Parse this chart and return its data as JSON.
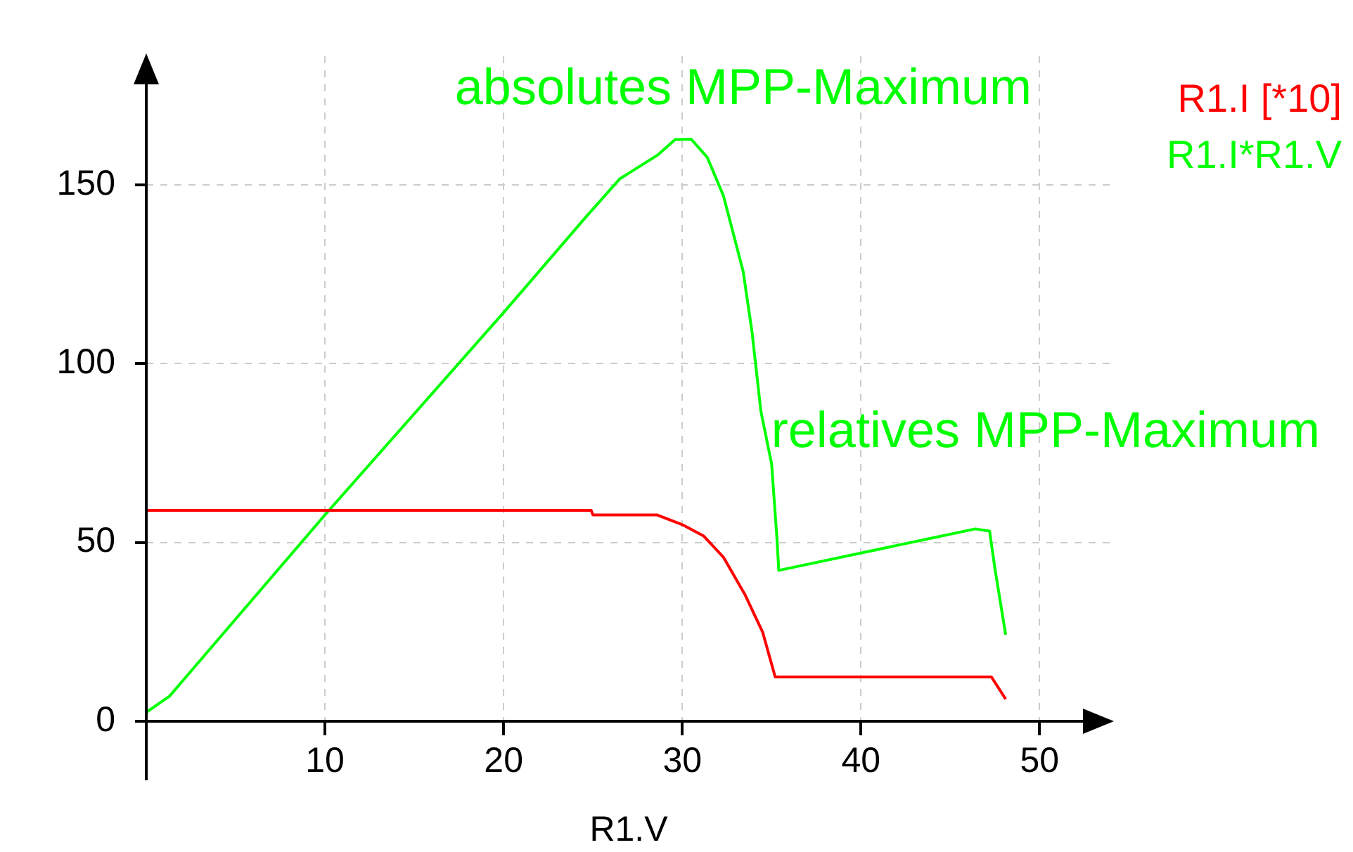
{
  "chart_data": {
    "type": "line",
    "xlabel": "R1.V",
    "xlim": [
      0,
      54
    ],
    "ylim": [
      0,
      186
    ],
    "xticks": [
      10,
      20,
      30,
      40,
      50
    ],
    "yticks": [
      0,
      50,
      100,
      150
    ],
    "grid": true,
    "legend": "top right",
    "marker": "none",
    "line_style": "solid",
    "series": [
      {
        "name": "R1.I [*10]",
        "color": "#ff0000",
        "x": [
          0,
          24.9,
          25,
          28.6,
          30,
          31.2,
          32.3,
          33.5,
          34.5,
          35.2,
          47.3,
          48.1
        ],
        "values": [
          59,
          59,
          57.7,
          57.7,
          55,
          51.8,
          45.9,
          35.5,
          24.9,
          12.4,
          12.4,
          6.2
        ]
      },
      {
        "name": "R1.I*R1.V",
        "color": "#00ff00",
        "x": [
          0,
          1.3,
          10,
          20,
          24.6,
          26.5,
          28.6,
          29.6,
          30.5,
          31.4,
          32.3,
          33.4,
          33.9,
          34.4,
          35,
          35.3,
          35.4,
          46.4,
          47.2,
          47.5,
          48.1
        ],
        "values": [
          2.5,
          7,
          57.7,
          114.3,
          141,
          151.7,
          158.3,
          162.7,
          162.8,
          157.7,
          147,
          126,
          109,
          86.7,
          72,
          51,
          42.2,
          53.8,
          53.2,
          42.6,
          24.2
        ]
      }
    ],
    "annotations": [
      {
        "text": "absolutes MPP-Maximum",
        "x": 30.5,
        "y": 162.8
      },
      {
        "text": "relatives MPP-Maximum",
        "x": 46.4,
        "y": 53.8
      }
    ]
  }
}
